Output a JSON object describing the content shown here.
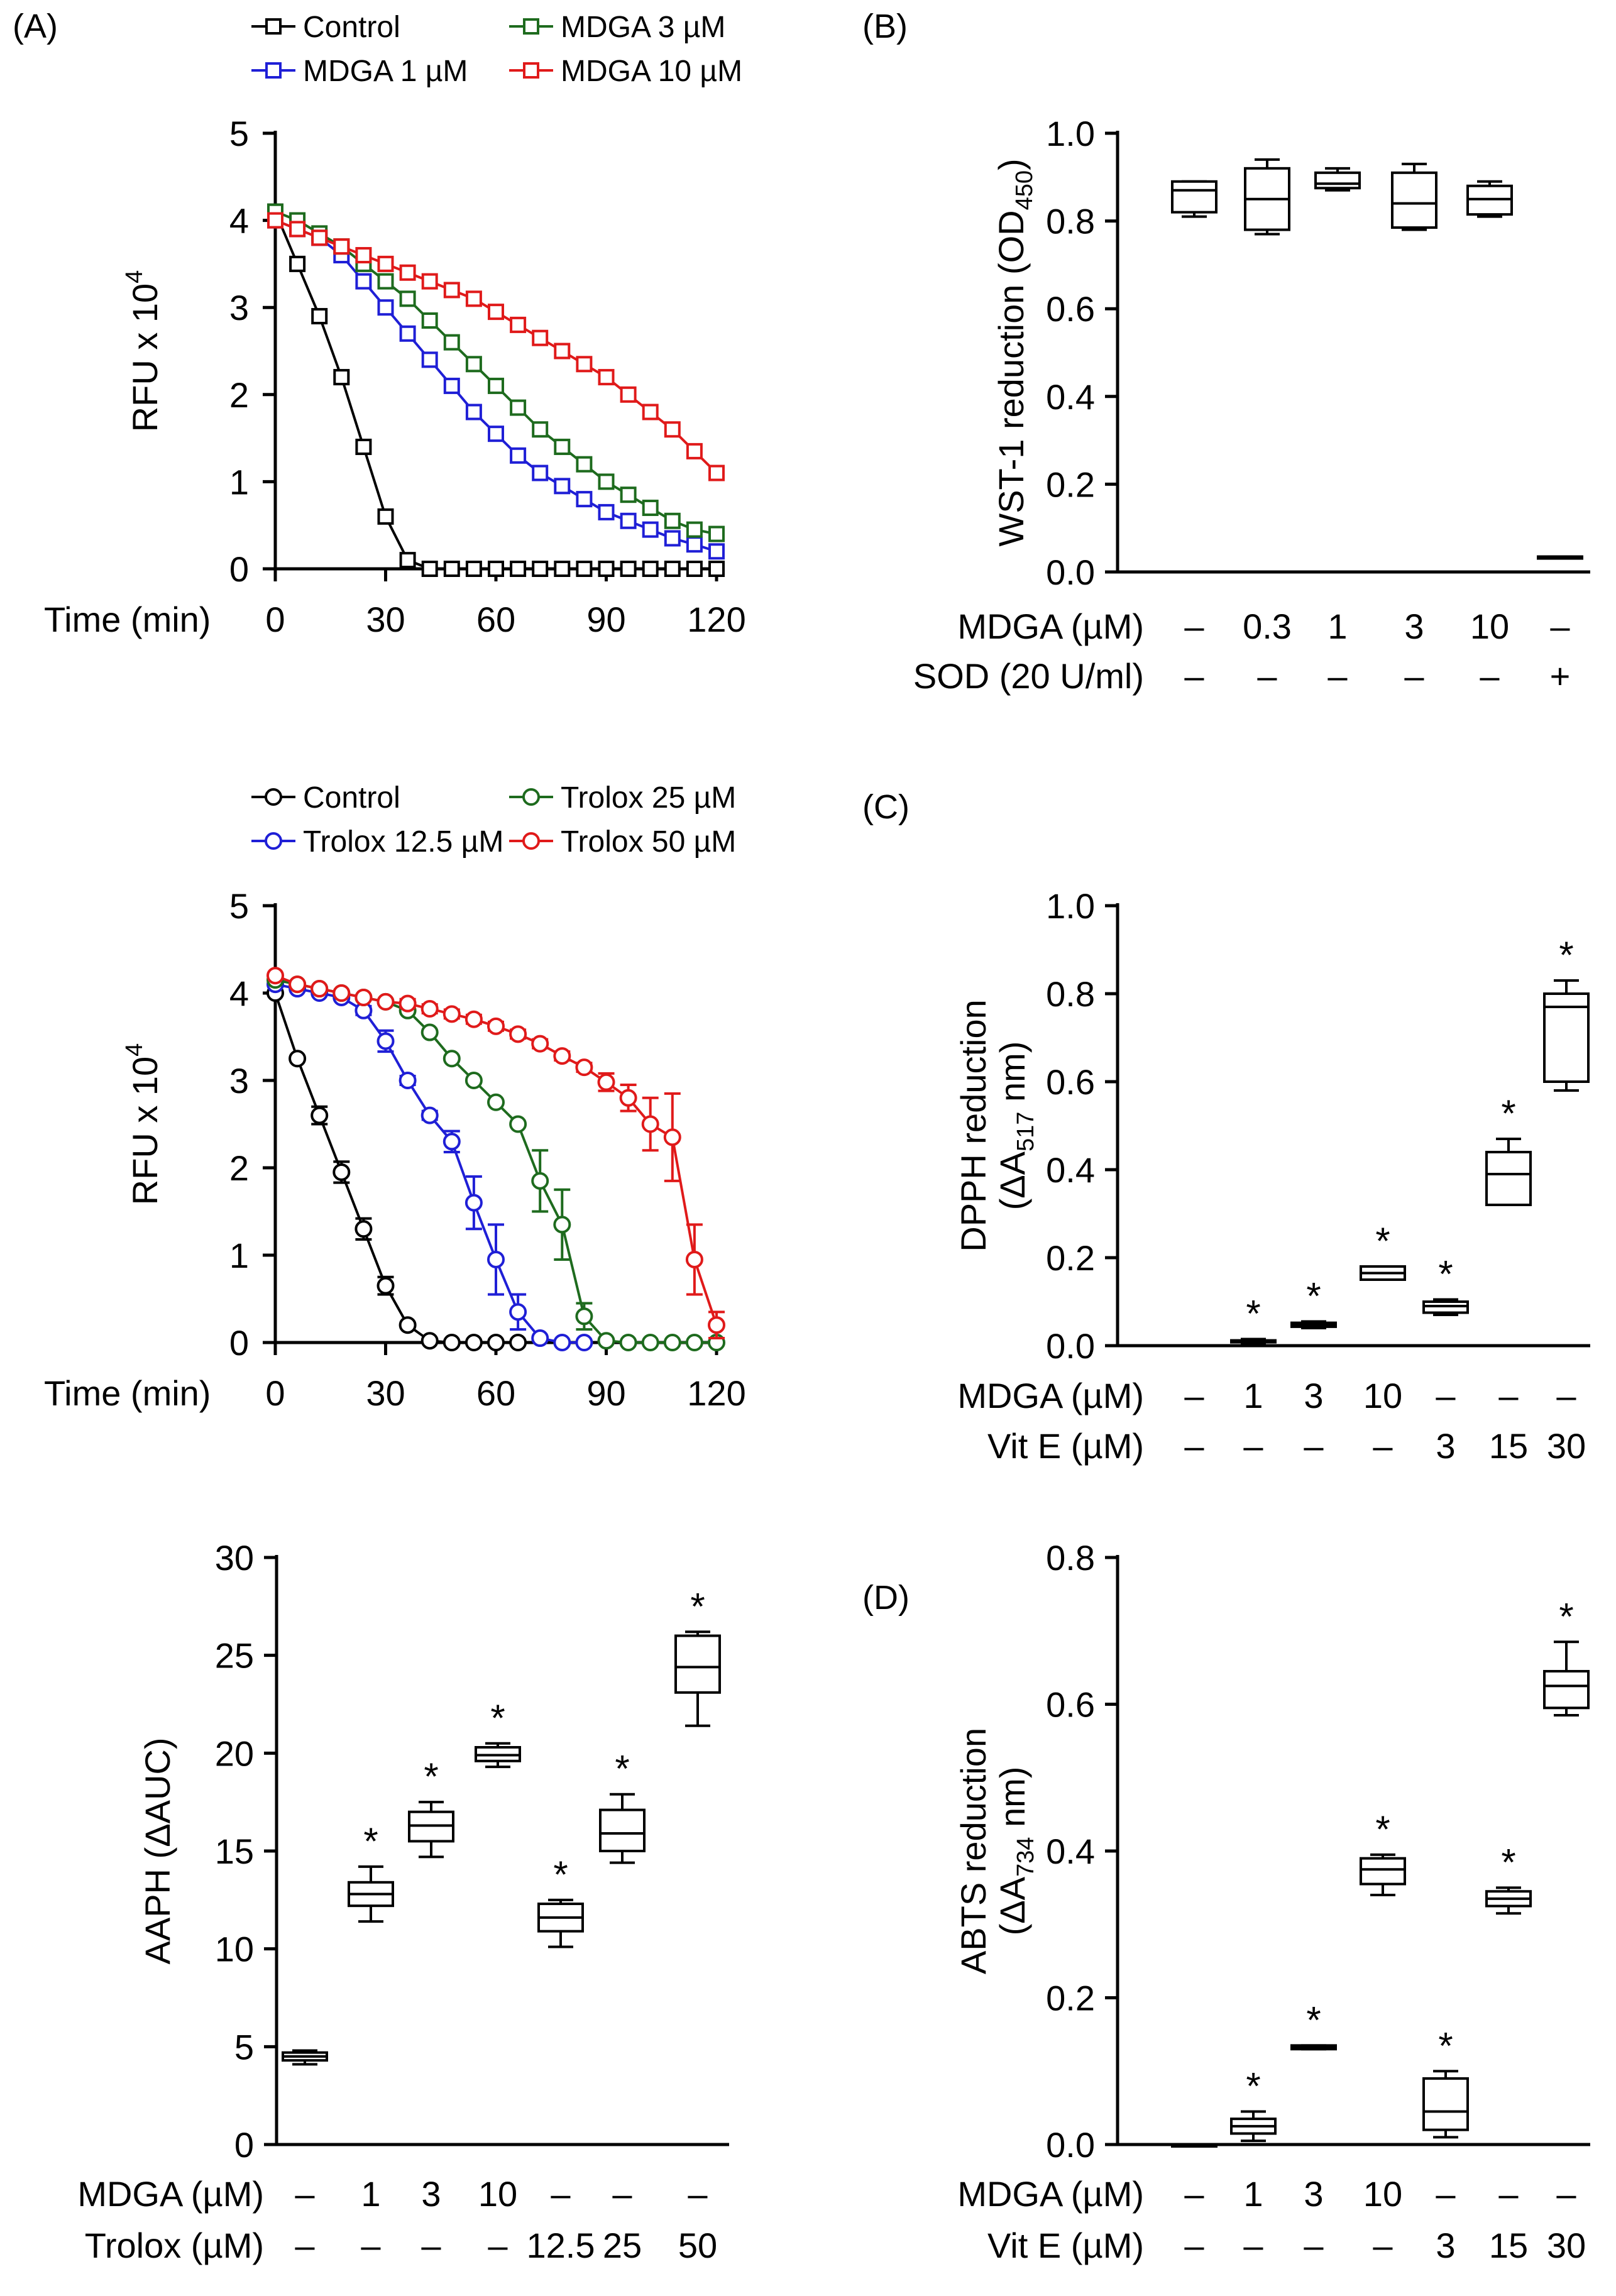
{
  "colors": {
    "black": "#000000",
    "blue": "#1f1fd6",
    "green": "#1e6b1e",
    "red": "#e01a1a"
  },
  "chart_data": [
    {
      "id": "A1",
      "panel_label": "(A)",
      "type": "line",
      "marker": "square",
      "ylabel": "RFU x 10",
      "ylabel_sup": "4",
      "xlabel": "Time (min)",
      "ylim": [
        0,
        5
      ],
      "xlim": [
        0,
        120
      ],
      "yticks": [
        0,
        1,
        2,
        3,
        4,
        5
      ],
      "xticks": [
        0,
        30,
        60,
        90,
        120
      ],
      "legend": [
        "Control",
        "MDGA 3 µM",
        "MDGA 1 µM",
        "MDGA 10 µM"
      ],
      "series": [
        {
          "name": "Control",
          "color": "black",
          "x": [
            0,
            6,
            12,
            18,
            24,
            30,
            36,
            42,
            48,
            54,
            60,
            66,
            72,
            78,
            84,
            90,
            96,
            102,
            108,
            114,
            120
          ],
          "y": [
            4.1,
            3.5,
            2.9,
            2.2,
            1.4,
            0.6,
            0.1,
            0.0,
            0.0,
            0.0,
            0.0,
            0.0,
            0.0,
            0.0,
            0.0,
            0.0,
            0.0,
            0.0,
            0.0,
            0.0,
            0.0
          ]
        },
        {
          "name": "MDGA 1 µM",
          "color": "blue",
          "x": [
            0,
            6,
            12,
            18,
            24,
            30,
            36,
            42,
            48,
            54,
            60,
            66,
            72,
            78,
            84,
            90,
            96,
            102,
            108,
            114,
            120
          ],
          "y": [
            4.0,
            3.9,
            3.8,
            3.6,
            3.3,
            3.0,
            2.7,
            2.4,
            2.1,
            1.8,
            1.55,
            1.3,
            1.1,
            0.95,
            0.8,
            0.65,
            0.55,
            0.45,
            0.35,
            0.28,
            0.2
          ]
        },
        {
          "name": "MDGA 3 µM",
          "color": "green",
          "x": [
            0,
            6,
            12,
            18,
            24,
            30,
            36,
            42,
            48,
            54,
            60,
            66,
            72,
            78,
            84,
            90,
            96,
            102,
            108,
            114,
            120
          ],
          "y": [
            4.1,
            4.0,
            3.85,
            3.7,
            3.5,
            3.3,
            3.1,
            2.85,
            2.6,
            2.35,
            2.1,
            1.85,
            1.6,
            1.4,
            1.2,
            1.0,
            0.85,
            0.7,
            0.55,
            0.45,
            0.4
          ]
        },
        {
          "name": "MDGA 10 µM",
          "color": "red",
          "x": [
            0,
            6,
            12,
            18,
            24,
            30,
            36,
            42,
            48,
            54,
            60,
            66,
            72,
            78,
            84,
            90,
            96,
            102,
            108,
            114,
            120
          ],
          "y": [
            4.0,
            3.9,
            3.8,
            3.7,
            3.6,
            3.5,
            3.4,
            3.3,
            3.2,
            3.1,
            2.95,
            2.8,
            2.65,
            2.5,
            2.35,
            2.2,
            2.0,
            1.8,
            1.6,
            1.35,
            1.1
          ]
        }
      ]
    },
    {
      "id": "A2",
      "type": "line",
      "marker": "circle",
      "ylabel": "RFU x 10",
      "ylabel_sup": "4",
      "xlabel": "Time (min)",
      "ylim": [
        0,
        5
      ],
      "xlim": [
        0,
        120
      ],
      "yticks": [
        0,
        1,
        2,
        3,
        4,
        5
      ],
      "xticks": [
        0,
        30,
        60,
        90,
        120
      ],
      "legend": [
        "Control",
        "Trolox  25 µM",
        "Trolox  12.5 µM",
        "Trolox  50 µM"
      ],
      "series": [
        {
          "name": "Control",
          "color": "black",
          "x": [
            0,
            6,
            12,
            18,
            24,
            30,
            36,
            42,
            48,
            54,
            60,
            66
          ],
          "y": [
            4.0,
            3.25,
            2.6,
            1.95,
            1.3,
            0.65,
            0.2,
            0.02,
            0.0,
            0.0,
            0.0,
            0.0
          ],
          "err": [
            0,
            0,
            0.1,
            0.12,
            0.12,
            0.1,
            0,
            0,
            0,
            0,
            0,
            0
          ]
        },
        {
          "name": "Trolox  12.5 µM",
          "color": "blue",
          "x": [
            0,
            6,
            12,
            18,
            24,
            30,
            36,
            42,
            48,
            54,
            60,
            66,
            72,
            78,
            84
          ],
          "y": [
            4.1,
            4.05,
            4.0,
            3.95,
            3.8,
            3.45,
            3.0,
            2.6,
            2.3,
            1.6,
            0.95,
            0.35,
            0.05,
            0.0,
            0.0
          ],
          "err": [
            0,
            0,
            0,
            0,
            0.05,
            0.12,
            0.05,
            0.05,
            0.12,
            0.3,
            0.4,
            0.2,
            0,
            0,
            0
          ]
        },
        {
          "name": "Trolox  25 µM",
          "color": "green",
          "x": [
            0,
            6,
            12,
            18,
            24,
            30,
            36,
            42,
            48,
            54,
            60,
            66,
            72,
            78,
            84,
            90,
            96,
            102,
            108,
            114,
            120
          ],
          "y": [
            4.15,
            4.1,
            4.05,
            4.0,
            3.95,
            3.9,
            3.8,
            3.55,
            3.25,
            3.0,
            2.75,
            2.5,
            1.85,
            1.35,
            0.3,
            0.02,
            0.0,
            0.0,
            0.0,
            0.0,
            0.0
          ],
          "err": [
            0,
            0,
            0,
            0,
            0,
            0,
            0,
            0,
            0,
            0,
            0,
            0,
            0.35,
            0.4,
            0.15,
            0,
            0,
            0,
            0,
            0,
            0
          ]
        },
        {
          "name": "Trolox  50 µM",
          "color": "red",
          "x": [
            0,
            6,
            12,
            18,
            24,
            30,
            36,
            42,
            48,
            54,
            60,
            66,
            72,
            78,
            84,
            90,
            96,
            102,
            108,
            114,
            120
          ],
          "y": [
            4.2,
            4.1,
            4.05,
            4.0,
            3.95,
            3.9,
            3.88,
            3.82,
            3.76,
            3.7,
            3.62,
            3.53,
            3.42,
            3.28,
            3.15,
            2.98,
            2.8,
            2.5,
            2.35,
            0.95,
            0.2
          ],
          "err": [
            0,
            0,
            0,
            0,
            0,
            0,
            0.05,
            0.05,
            0.05,
            0.05,
            0.05,
            0.05,
            0.05,
            0.05,
            0.05,
            0.1,
            0.15,
            0.3,
            0.5,
            0.4,
            0.15
          ]
        }
      ]
    },
    {
      "id": "AAPH",
      "type": "box",
      "ylabel": "AAPH (ΔAUC)",
      "ylim": [
        0,
        30
      ],
      "yticks": [
        0,
        5,
        10,
        15,
        20,
        25,
        30
      ],
      "categories": [
        "ctrl",
        "m1",
        "m3",
        "m10",
        "t12.5",
        "t25",
        "t50"
      ],
      "boxes": [
        {
          "min": 4.1,
          "q1": 4.3,
          "median": 4.5,
          "q3": 4.7,
          "max": 4.8,
          "sig": false
        },
        {
          "min": 11.4,
          "q1": 12.2,
          "median": 12.8,
          "q3": 13.4,
          "max": 14.2,
          "sig": true
        },
        {
          "min": 14.7,
          "q1": 15.5,
          "median": 16.3,
          "q3": 17.0,
          "max": 17.5,
          "sig": true
        },
        {
          "min": 19.3,
          "q1": 19.6,
          "median": 19.9,
          "q3": 20.3,
          "max": 20.5,
          "sig": true
        },
        {
          "min": 10.1,
          "q1": 10.9,
          "median": 11.6,
          "q3": 12.3,
          "max": 12.5,
          "sig": true
        },
        {
          "min": 14.4,
          "q1": 15.0,
          "median": 15.9,
          "q3": 17.1,
          "max": 17.9,
          "sig": true
        },
        {
          "min": 21.4,
          "q1": 23.1,
          "median": 24.4,
          "q3": 26.0,
          "max": 26.2,
          "sig": true
        }
      ],
      "conditions": [
        {
          "label": "MDGA (µM)",
          "values": [
            "–",
            "1",
            "3",
            "10",
            "–",
            "–",
            "–"
          ]
        },
        {
          "label": "Trolox (µM)",
          "values": [
            "–",
            "–",
            "–",
            "–",
            "12.5",
            "25",
            "50"
          ]
        }
      ]
    },
    {
      "id": "B",
      "panel_label": "(B)",
      "type": "box",
      "ylabel": "WST-1 reduction (OD",
      "ylabel_sub": "450",
      "ylabel_end": ")",
      "ylim": [
        0,
        1.0
      ],
      "yticks": [
        0.0,
        0.2,
        0.4,
        0.6,
        0.8,
        1.0
      ],
      "categories": [
        "ctrl",
        "0.3",
        "1",
        "3",
        "10",
        "sod"
      ],
      "boxes": [
        {
          "min": 0.81,
          "q1": 0.82,
          "median": 0.87,
          "q3": 0.89,
          "max": 0.89,
          "sig": false
        },
        {
          "min": 0.77,
          "q1": 0.78,
          "median": 0.85,
          "q3": 0.92,
          "max": 0.94,
          "sig": false
        },
        {
          "min": 0.87,
          "q1": 0.875,
          "median": 0.885,
          "q3": 0.91,
          "max": 0.92,
          "sig": false
        },
        {
          "min": 0.78,
          "q1": 0.785,
          "median": 0.84,
          "q3": 0.91,
          "max": 0.93,
          "sig": false
        },
        {
          "min": 0.81,
          "q1": 0.815,
          "median": 0.85,
          "q3": 0.88,
          "max": 0.89,
          "sig": false
        },
        {
          "min": 0.035,
          "q1": 0.035,
          "median": 0.035,
          "q3": 0.035,
          "max": 0.035,
          "sig": false
        }
      ],
      "conditions": [
        {
          "label": "MDGA (µM)",
          "values": [
            "–",
            "0.3",
            "1",
            "3",
            "10",
            "–"
          ]
        },
        {
          "label": "SOD (20 U/ml)",
          "values": [
            "–",
            "–",
            "–",
            "–",
            "–",
            "+"
          ]
        }
      ]
    },
    {
      "id": "C",
      "panel_label": "(C)",
      "type": "box",
      "ylabel": "DPPH reduction",
      "ylabel2": "(ΔA",
      "ylabel2_sub": "517",
      "ylabel2_end": " nm)",
      "ylim": [
        0,
        1.0
      ],
      "yticks": [
        0.0,
        0.2,
        0.4,
        0.6,
        0.8,
        1.0
      ],
      "categories": [
        "ctrl",
        "m1",
        "m3",
        "m10",
        "e3",
        "e15",
        "e30"
      ],
      "boxes": [
        {
          "min": 0.0,
          "q1": 0.0,
          "median": 0.0,
          "q3": 0.0,
          "max": 0.0,
          "sig": false,
          "hidden": true
        },
        {
          "min": 0.005,
          "q1": 0.008,
          "median": 0.01,
          "q3": 0.012,
          "max": 0.015,
          "sig": true
        },
        {
          "min": 0.04,
          "q1": 0.043,
          "median": 0.047,
          "q3": 0.052,
          "max": 0.055,
          "sig": true
        },
        {
          "min": 0.15,
          "q1": 0.15,
          "median": 0.165,
          "q3": 0.18,
          "max": 0.18,
          "sig": true
        },
        {
          "min": 0.07,
          "q1": 0.075,
          "median": 0.09,
          "q3": 0.1,
          "max": 0.105,
          "sig": true
        },
        {
          "min": 0.32,
          "q1": 0.32,
          "median": 0.39,
          "q3": 0.44,
          "max": 0.47,
          "sig": true
        },
        {
          "min": 0.58,
          "q1": 0.6,
          "median": 0.77,
          "q3": 0.8,
          "max": 0.83,
          "sig": true
        }
      ],
      "conditions": [
        {
          "label": "MDGA (µM)",
          "values": [
            "–",
            "1",
            "3",
            "10",
            "–",
            "–",
            "–"
          ]
        },
        {
          "label": "Vit E (µM)",
          "values": [
            "–",
            "–",
            "–",
            "–",
            "3",
            "15",
            "30"
          ]
        }
      ]
    },
    {
      "id": "D",
      "panel_label": "(D)",
      "type": "box",
      "ylabel": "ABTS reduction",
      "ylabel2": "(ΔA",
      "ylabel2_sub": "734",
      "ylabel2_end": " nm)",
      "ylim": [
        0,
        0.8
      ],
      "yticks": [
        0.0,
        0.2,
        0.4,
        0.6,
        0.8
      ],
      "categories": [
        "ctrl",
        "m1",
        "m3",
        "m10",
        "e3",
        "e15",
        "e30"
      ],
      "boxes": [
        {
          "min": 0.0,
          "q1": 0.0,
          "median": 0.0,
          "q3": 0.0,
          "max": 0.0,
          "sig": false
        },
        {
          "min": 0.005,
          "q1": 0.015,
          "median": 0.025,
          "q3": 0.035,
          "max": 0.045,
          "sig": true
        },
        {
          "min": 0.13,
          "q1": 0.13,
          "median": 0.132,
          "q3": 0.135,
          "max": 0.135,
          "sig": true
        },
        {
          "min": 0.34,
          "q1": 0.355,
          "median": 0.375,
          "q3": 0.39,
          "max": 0.395,
          "sig": true
        },
        {
          "min": 0.01,
          "q1": 0.02,
          "median": 0.045,
          "q3": 0.09,
          "max": 0.1,
          "sig": true
        },
        {
          "min": 0.315,
          "q1": 0.325,
          "median": 0.335,
          "q3": 0.345,
          "max": 0.35,
          "sig": true
        },
        {
          "min": 0.585,
          "q1": 0.595,
          "median": 0.625,
          "q3": 0.645,
          "max": 0.685,
          "sig": true
        }
      ],
      "conditions": [
        {
          "label": "MDGA (µM)",
          "values": [
            "–",
            "1",
            "3",
            "10",
            "–",
            "–",
            "–"
          ]
        },
        {
          "label": "Vit E (µM)",
          "values": [
            "–",
            "–",
            "–",
            "–",
            "3",
            "15",
            "30"
          ]
        }
      ]
    }
  ]
}
